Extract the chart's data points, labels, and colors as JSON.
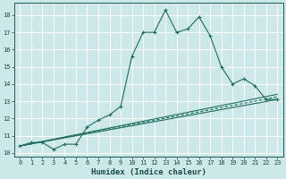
{
  "xlabel": "Humidex (Indice chaleur)",
  "bg_color": "#cce8e8",
  "grid_color": "#ffffff",
  "line_color": "#1a7060",
  "xlim": [
    -0.5,
    23.5
  ],
  "ylim": [
    9.8,
    18.7
  ],
  "xticks": [
    0,
    1,
    2,
    3,
    4,
    5,
    6,
    7,
    8,
    9,
    10,
    11,
    12,
    13,
    14,
    15,
    16,
    17,
    18,
    19,
    20,
    21,
    22,
    23
  ],
  "yticks": [
    10,
    11,
    12,
    13,
    14,
    15,
    16,
    17,
    18
  ],
  "main_x": [
    0,
    1,
    2,
    3,
    4,
    5,
    6,
    7,
    8,
    9,
    10,
    11,
    12,
    13,
    14,
    15,
    16,
    17,
    18,
    19,
    20,
    21,
    22,
    23
  ],
  "main_y": [
    10.4,
    10.6,
    10.6,
    10.2,
    10.5,
    10.5,
    11.5,
    11.9,
    12.2,
    12.7,
    15.6,
    17.0,
    17.0,
    18.3,
    17.0,
    17.2,
    17.9,
    16.8,
    15.0,
    14.0,
    14.3,
    13.9,
    13.1,
    13.1
  ],
  "line1_x": [
    0,
    23
  ],
  "line1_y": [
    10.4,
    13.1
  ],
  "line2_x": [
    0,
    23
  ],
  "line2_y": [
    10.4,
    13.4
  ],
  "line3_x": [
    0,
    23
  ],
  "line3_y": [
    10.4,
    13.25
  ],
  "tick_fontsize": 5,
  "xlabel_fontsize": 6.5
}
